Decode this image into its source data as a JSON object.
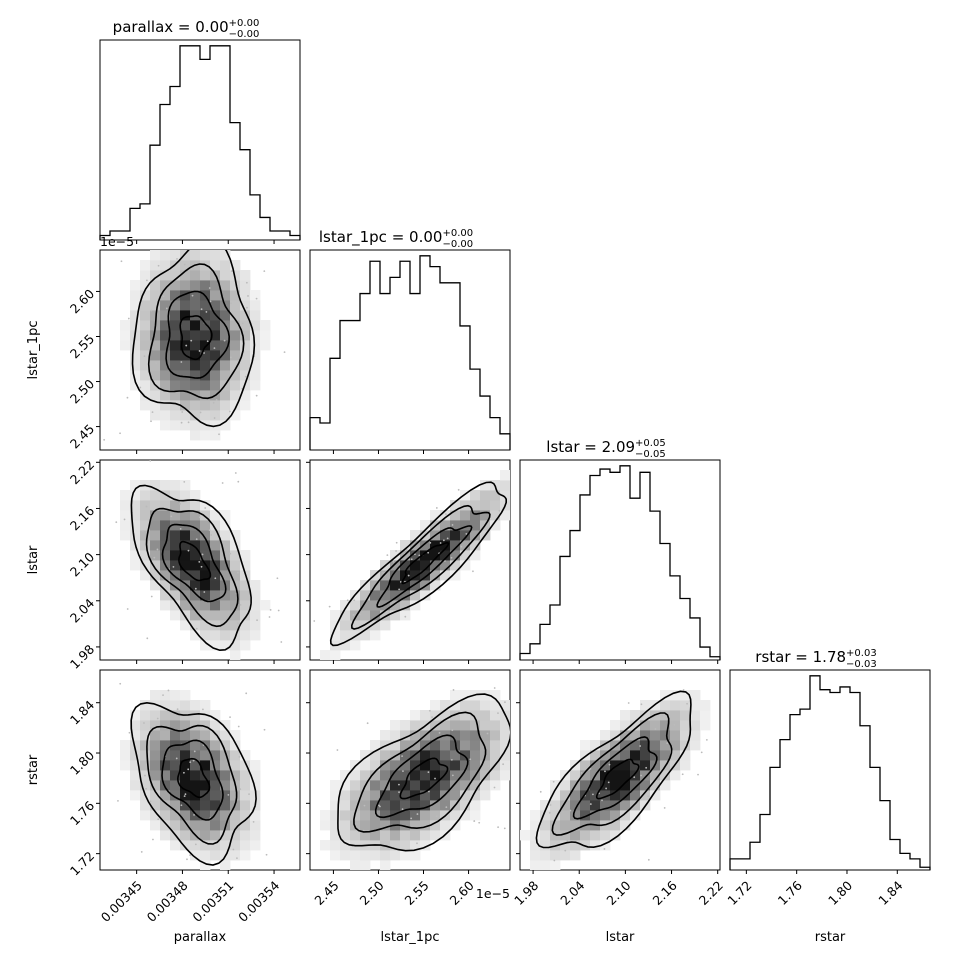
{
  "chart_data": {
    "type": "corner",
    "parameters": [
      "parallax",
      "lstar_1pc",
      "lstar",
      "rstar"
    ],
    "axis_labels": [
      "parallax",
      "lstar_1pc",
      "lstar",
      "rstar"
    ],
    "titles": [
      {
        "name": "parallax",
        "value": "0.00",
        "plus": "+0.00",
        "minus": "−0.00"
      },
      {
        "name": "lstar_1pc",
        "value": "0.00",
        "plus": "+0.00",
        "minus": "−0.00"
      },
      {
        "name": "lstar",
        "value": "2.09",
        "plus": "+0.05",
        "minus": "−0.05"
      },
      {
        "name": "rstar",
        "value": "1.78",
        "plus": "+0.03",
        "minus": "−0.03"
      }
    ],
    "ranges": [
      [
        0.003426,
        0.003557
      ],
      [
        2.424e-05,
        2.646e-05
      ],
      [
        1.963,
        2.223
      ],
      [
        1.707,
        1.866
      ]
    ],
    "ticks": {
      "parallax": {
        "values": [
          0.00345,
          0.00348,
          0.00351,
          0.00354
        ],
        "labels": [
          "0.00345",
          "0.00348",
          "0.00351",
          "0.00354"
        ]
      },
      "lstar_1pc": {
        "values": [
          2.45e-05,
          2.5e-05,
          2.55e-05,
          2.6e-05
        ],
        "labels": [
          "2.45",
          "2.50",
          "2.55",
          "2.60"
        ],
        "offset": "1e−5"
      },
      "lstar": {
        "values": [
          1.98,
          2.04,
          2.1,
          2.16,
          2.22
        ],
        "labels": [
          "1.98",
          "2.04",
          "2.10",
          "2.16",
          "2.22"
        ]
      },
      "rstar": {
        "values": [
          1.72,
          1.76,
          1.8,
          1.84
        ],
        "labels": [
          "1.72",
          "1.76",
          "1.80",
          "1.84"
        ]
      }
    },
    "histograms": [
      {
        "param": "parallax",
        "bins": 20,
        "counts": [
          1,
          2,
          2,
          7,
          8,
          21,
          30,
          34,
          43,
          43,
          40,
          43,
          43,
          26,
          20,
          10,
          5,
          2,
          2,
          1
        ]
      },
      {
        "param": "lstar_1pc",
        "bins": 20,
        "counts": [
          6,
          5,
          17,
          24,
          24,
          29,
          35,
          29,
          32,
          35,
          29,
          36,
          34,
          31,
          31,
          23,
          15,
          10,
          6,
          3
        ]
      },
      {
        "param": "lstar",
        "bins": 20,
        "counts": [
          2,
          5,
          11,
          17,
          32,
          40,
          51,
          57,
          59,
          58,
          60,
          50,
          58,
          46,
          36,
          26,
          19,
          13,
          4,
          1
        ]
      },
      {
        "param": "rstar",
        "bins": 20,
        "counts": [
          4,
          4,
          10,
          20,
          37,
          47,
          56,
          58,
          70,
          65,
          64,
          66,
          64,
          52,
          37,
          25,
          11,
          6,
          4,
          1
        ]
      }
    ],
    "pairs": [
      {
        "x": "parallax",
        "y": "lstar_1pc",
        "x_center": 0.003488,
        "y_center": 2.55e-05,
        "x_sd": 1.95e-05,
        "y_sd": 4.8e-07,
        "correlation": 0.0
      },
      {
        "x": "parallax",
        "y": "lstar",
        "x_center": 0.003487,
        "y_center": 2.09,
        "x_sd": 1.95e-05,
        "y_sd": 0.05,
        "correlation": -0.55
      },
      {
        "x": "parallax",
        "y": "rstar",
        "x_center": 0.003487,
        "y_center": 1.78,
        "x_sd": 1.95e-05,
        "y_sd": 0.03,
        "correlation": -0.35
      },
      {
        "x": "lstar_1pc",
        "y": "lstar",
        "x_center": 2.55e-05,
        "y_center": 2.09,
        "x_sd": 4.8e-07,
        "y_sd": 0.05,
        "correlation": 0.9
      },
      {
        "x": "lstar_1pc",
        "y": "rstar",
        "x_center": 2.55e-05,
        "y_center": 1.78,
        "x_sd": 4.8e-07,
        "y_sd": 0.03,
        "correlation": 0.6
      },
      {
        "x": "lstar",
        "y": "rstar",
        "x_center": 2.09,
        "y_center": 1.78,
        "x_sd": 0.05,
        "y_sd": 0.03,
        "correlation": 0.75
      }
    ],
    "contour_levels_sigma": [
      0.5,
      1.0,
      1.5,
      2.0
    ],
    "colors": {
      "line": "#000000",
      "density": "#000000",
      "background": "#ffffff"
    }
  }
}
